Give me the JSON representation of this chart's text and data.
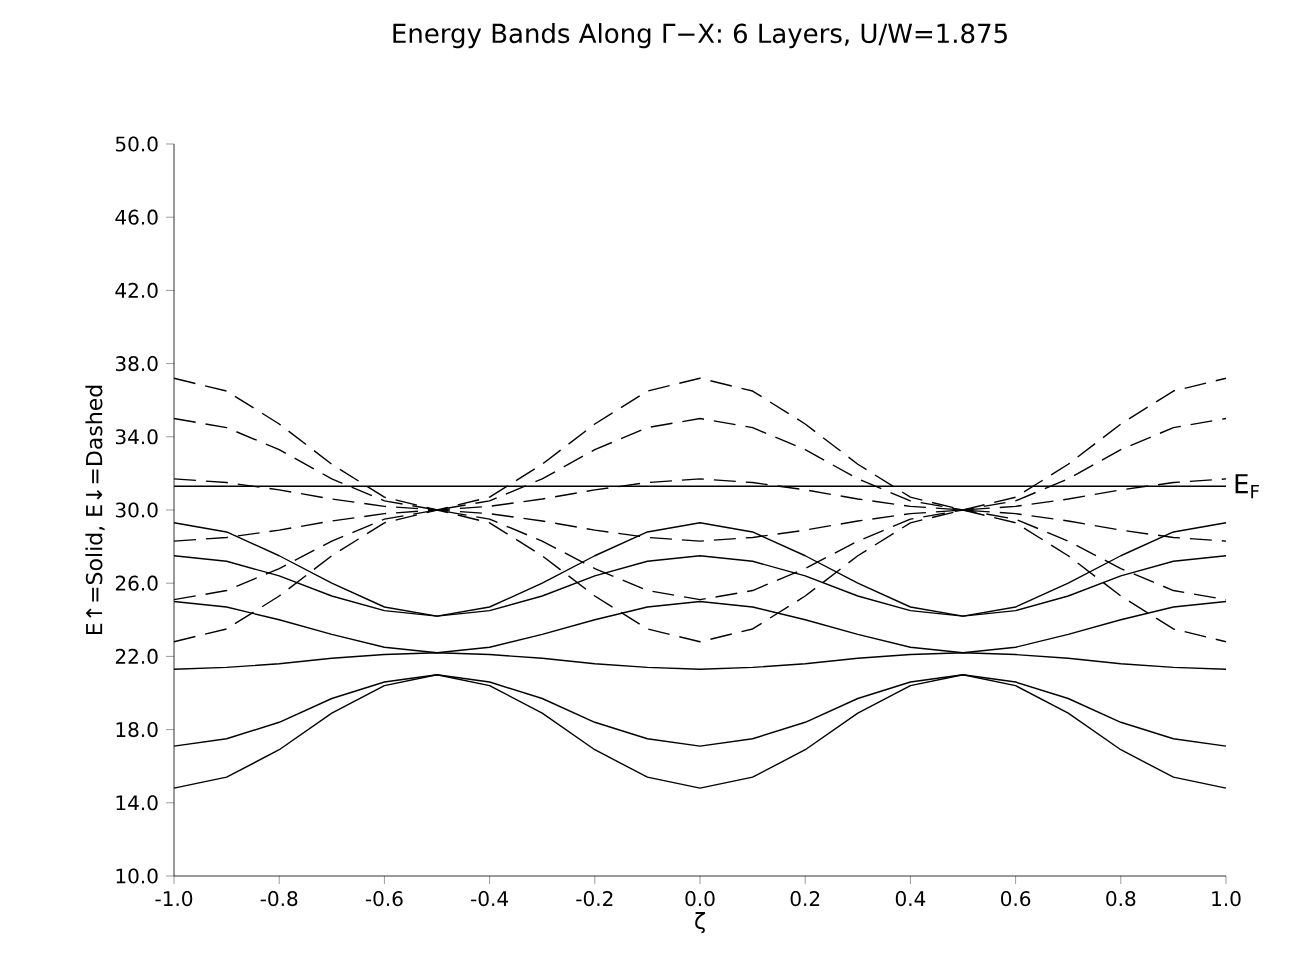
{
  "chart_data": {
    "type": "line",
    "title": "Energy Bands Along Γ−X: 6 Layers, U/W=1.875",
    "xlabel": "ζ",
    "ylabel": "E↑=Solid, E↓=Dashed",
    "x": [
      -1.0,
      -0.9,
      -0.8,
      -0.7,
      -0.6,
      -0.5,
      -0.4,
      -0.3,
      -0.2,
      -0.1,
      0.0,
      0.1,
      0.2,
      0.3,
      0.4,
      0.5,
      0.6,
      0.7,
      0.8,
      0.9,
      1.0
    ],
    "xlim": [
      -1.0,
      1.0
    ],
    "ylim": [
      10,
      50
    ],
    "xticks": [
      {
        "value": -1.0,
        "label": "-1.0"
      },
      {
        "value": -0.8,
        "label": "-0.8"
      },
      {
        "value": -0.6,
        "label": "-0.6"
      },
      {
        "value": -0.4,
        "label": "-0.4"
      },
      {
        "value": -0.2,
        "label": "-0.2"
      },
      {
        "value": 0.0,
        "label": "0.0"
      },
      {
        "value": 0.2,
        "label": "0.2"
      },
      {
        "value": 0.4,
        "label": "0.4"
      },
      {
        "value": 0.6,
        "label": "0.6"
      },
      {
        "value": 0.8,
        "label": "0.8"
      },
      {
        "value": 1.0,
        "label": "1.0"
      }
    ],
    "yticks": [
      {
        "value": 10,
        "label": "10.0"
      },
      {
        "value": 14,
        "label": "14.0"
      },
      {
        "value": 18,
        "label": "18.0"
      },
      {
        "value": 22,
        "label": "22.0"
      },
      {
        "value": 26,
        "label": "26.0"
      },
      {
        "value": 30,
        "label": "30.0"
      },
      {
        "value": 34,
        "label": "34.0"
      },
      {
        "value": 38,
        "label": "38.0"
      },
      {
        "value": 42,
        "label": "42.0"
      },
      {
        "value": 46,
        "label": "46.0"
      },
      {
        "value": 50,
        "label": "50.0"
      }
    ],
    "marker": "none",
    "ref_lines": [
      {
        "axis": "y",
        "value": 31.3,
        "label": "E$_{F}$",
        "color": "#000000",
        "line_style": "solid"
      }
    ],
    "series": [
      {
        "color": "#000000",
        "line_style": "solid",
        "values": [
          14.8,
          15.4,
          16.9,
          18.9,
          20.4,
          21.0,
          20.4,
          18.9,
          16.9,
          15.4,
          14.8,
          15.4,
          16.9,
          18.9,
          20.4,
          21.0,
          20.4,
          18.9,
          16.9,
          15.4,
          14.8
        ]
      },
      {
        "color": "#000000",
        "line_style": "solid",
        "values": [
          17.1,
          17.5,
          18.4,
          19.7,
          20.6,
          21.0,
          20.6,
          19.7,
          18.4,
          17.5,
          17.1,
          17.5,
          18.4,
          19.7,
          20.6,
          21.0,
          20.6,
          19.7,
          18.4,
          17.5,
          17.1
        ]
      },
      {
        "color": "#000000",
        "line_style": "solid",
        "values": [
          21.3,
          21.4,
          21.6,
          21.9,
          22.1,
          22.2,
          22.1,
          21.9,
          21.6,
          21.4,
          21.3,
          21.4,
          21.6,
          21.9,
          22.1,
          22.2,
          22.1,
          21.9,
          21.6,
          21.4,
          21.3
        ]
      },
      {
        "color": "#000000",
        "line_style": "solid",
        "values": [
          25.0,
          24.7,
          24.0,
          23.2,
          22.5,
          22.2,
          22.5,
          23.2,
          24.0,
          24.7,
          25.0,
          24.7,
          24.0,
          23.2,
          22.5,
          22.2,
          22.5,
          23.2,
          24.0,
          24.7,
          25.0
        ]
      },
      {
        "color": "#000000",
        "line_style": "solid",
        "values": [
          27.5,
          27.2,
          26.4,
          25.3,
          24.5,
          24.2,
          24.5,
          25.3,
          26.4,
          27.2,
          27.5,
          27.2,
          26.4,
          25.3,
          24.5,
          24.2,
          24.5,
          25.3,
          26.4,
          27.2,
          27.5
        ]
      },
      {
        "color": "#000000",
        "line_style": "solid",
        "values": [
          29.3,
          28.8,
          27.5,
          26.0,
          24.7,
          24.2,
          24.7,
          26.0,
          27.5,
          28.8,
          29.3,
          28.8,
          27.5,
          26.0,
          24.7,
          24.2,
          24.7,
          26.0,
          27.5,
          28.8,
          29.3
        ]
      },
      {
        "color": "#000000",
        "line_style": "dashed",
        "values": [
          37.2,
          36.5,
          34.7,
          32.5,
          30.7,
          30.0,
          30.7,
          32.5,
          34.7,
          36.5,
          37.2,
          36.5,
          34.7,
          32.5,
          30.7,
          30.0,
          30.7,
          32.5,
          34.7,
          36.5,
          37.2
        ]
      },
      {
        "color": "#000000",
        "line_style": "dashed",
        "values": [
          35.0,
          34.5,
          33.3,
          31.7,
          30.5,
          30.0,
          30.5,
          31.7,
          33.3,
          34.5,
          35.0,
          34.5,
          33.3,
          31.7,
          30.5,
          30.0,
          30.5,
          31.7,
          33.3,
          34.5,
          35.0
        ]
      },
      {
        "color": "#000000",
        "line_style": "dashed",
        "values": [
          31.7,
          31.5,
          31.1,
          30.6,
          30.2,
          30.0,
          30.2,
          30.6,
          31.1,
          31.5,
          31.7,
          31.5,
          31.1,
          30.6,
          30.2,
          30.0,
          30.2,
          30.6,
          31.1,
          31.5,
          31.7
        ]
      },
      {
        "color": "#000000",
        "line_style": "dashed",
        "values": [
          28.3,
          28.5,
          28.9,
          29.4,
          29.8,
          30.0,
          29.8,
          29.4,
          28.9,
          28.5,
          28.3,
          28.5,
          28.9,
          29.4,
          29.8,
          30.0,
          29.8,
          29.4,
          28.9,
          28.5,
          28.3
        ]
      },
      {
        "color": "#000000",
        "line_style": "dashed",
        "values": [
          25.1,
          25.6,
          26.8,
          28.3,
          29.5,
          30.0,
          29.5,
          28.3,
          26.8,
          25.6,
          25.1,
          25.6,
          26.8,
          28.3,
          29.5,
          30.0,
          29.5,
          28.3,
          26.8,
          25.6,
          25.1
        ]
      },
      {
        "color": "#000000",
        "line_style": "dashed",
        "values": [
          22.8,
          23.5,
          25.3,
          27.5,
          29.3,
          30.0,
          29.3,
          27.5,
          25.3,
          23.5,
          22.8,
          23.5,
          25.3,
          27.5,
          29.3,
          30.0,
          29.3,
          27.5,
          25.3,
          23.5,
          22.8
        ]
      }
    ]
  }
}
